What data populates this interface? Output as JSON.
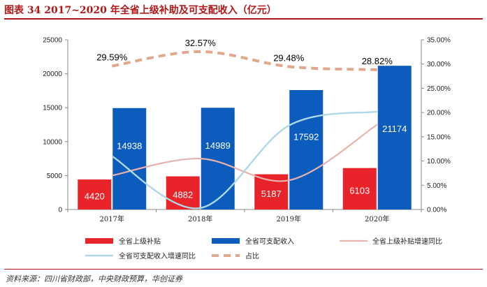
{
  "title": "图表 34   2017~2020 年全省上级补助及可支配收入（亿元）",
  "source": "资料来源：四川省财政部，中央财政预算，华创证券",
  "colors": {
    "red": "#e8232a",
    "blue": "#0b5cbc",
    "pink": "#eab2ad",
    "lightblue": "#add8e6",
    "tan": "#e0a88c",
    "title": "#b01818"
  },
  "chart_data": {
    "type": "bar",
    "categories": [
      "2017年",
      "2018年",
      "2019年",
      "2020年"
    ],
    "series": [
      {
        "name": "全省上级补贴",
        "type": "bar",
        "axis": "left",
        "values": [
          4420,
          4882,
          5187,
          6103
        ],
        "labels": [
          "4420",
          "4882",
          "5187",
          "6103"
        ]
      },
      {
        "name": "全省可支配收入",
        "type": "bar",
        "axis": "left",
        "values": [
          14938,
          14989,
          17592,
          21174
        ],
        "labels": [
          "14938",
          "14989",
          "17592",
          "21174"
        ]
      },
      {
        "name": "全省上级补贴增速同比",
        "type": "line",
        "axis": "right",
        "values": [
          7.0,
          10.5,
          6.0,
          17.5
        ]
      },
      {
        "name": "全省可支配收入增速同比",
        "type": "line",
        "axis": "right",
        "values": [
          11.0,
          0.3,
          17.3,
          20.2
        ]
      },
      {
        "name": "占比",
        "type": "line",
        "axis": "right",
        "style": "dashed",
        "values": [
          29.59,
          32.57,
          29.48,
          28.82
        ],
        "labels": [
          "29.59%",
          "32.57%",
          "29.48%",
          "28.82%"
        ]
      }
    ],
    "y_left": {
      "ylim": [
        0,
        25000
      ],
      "ticks": [
        "0",
        "5000",
        "10000",
        "15000",
        "20000",
        "25000"
      ]
    },
    "y_right": {
      "ylim": [
        0,
        35
      ],
      "ticks": [
        "0.00%",
        "5.00%",
        "10.00%",
        "15.00%",
        "20.00%",
        "25.00%",
        "30.00%",
        "35.00%"
      ]
    },
    "legend": {
      "position": "bottom",
      "items": [
        "全省上级补贴",
        "全省可支配收入",
        "全省上级补贴增速同比",
        "全省可支配收入增速同比",
        "占比"
      ]
    }
  }
}
